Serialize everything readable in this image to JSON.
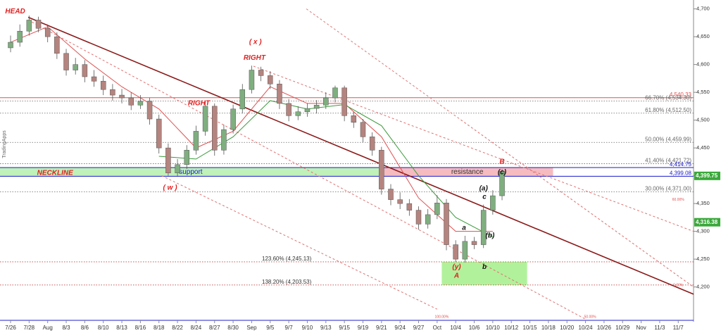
{
  "chart_data": {
    "type": "candlestick",
    "watermark": "TradingApps",
    "xlim": [
      -1.14,
      73.65
    ],
    "ylim": [
      4140,
      4716
    ],
    "xticks": [
      {
        "value": 0,
        "label": "7/26"
      },
      {
        "value": 2,
        "label": "7/28"
      },
      {
        "value": 4,
        "label": "Aug"
      },
      {
        "value": 6,
        "label": "8/3"
      },
      {
        "value": 8,
        "label": "8/6"
      },
      {
        "value": 10,
        "label": "8/10"
      },
      {
        "value": 12,
        "label": "8/13"
      },
      {
        "value": 14,
        "label": "8/16"
      },
      {
        "value": 16,
        "label": "8/18"
      },
      {
        "value": 18,
        "label": "8/22"
      },
      {
        "value": 20,
        "label": "8/24"
      },
      {
        "value": 22,
        "label": "8/27"
      },
      {
        "value": 24,
        "label": "8/30"
      },
      {
        "value": 26,
        "label": "Sep"
      },
      {
        "value": 28,
        "label": "9/5"
      },
      {
        "value": 30,
        "label": "9/7"
      },
      {
        "value": 32,
        "label": "9/10"
      },
      {
        "value": 34,
        "label": "9/13"
      },
      {
        "value": 36,
        "label": "9/15"
      },
      {
        "value": 38,
        "label": "9/19"
      },
      {
        "value": 40,
        "label": "9/21"
      },
      {
        "value": 42,
        "label": "9/24"
      },
      {
        "value": 44,
        "label": "9/27"
      },
      {
        "value": 46,
        "label": "Oct"
      },
      {
        "value": 48,
        "label": "10/4"
      },
      {
        "value": 50,
        "label": "10/6"
      },
      {
        "value": 52,
        "label": "10/10"
      },
      {
        "value": 54,
        "label": "10/12"
      },
      {
        "value": 56,
        "label": "10/15"
      },
      {
        "value": 58,
        "label": "10/18"
      },
      {
        "value": 60,
        "label": "10/20"
      },
      {
        "value": 62,
        "label": "10/24"
      },
      {
        "value": 64,
        "label": "10/26"
      },
      {
        "value": 66,
        "label": "10/29"
      },
      {
        "value": 68,
        "label": "Nov"
      },
      {
        "value": 70,
        "label": "11/3"
      },
      {
        "value": 72,
        "label": "11/7"
      }
    ],
    "yticks": [
      {
        "value": 4700,
        "label": "4,700"
      },
      {
        "value": 4650,
        "label": "4,650"
      },
      {
        "value": 4600,
        "label": "4,600"
      },
      {
        "value": 4550,
        "label": "4,550"
      },
      {
        "value": 4500,
        "label": "4,500"
      },
      {
        "value": 4450,
        "label": "4,450"
      },
      {
        "value": 4400,
        "label": "4,400"
      },
      {
        "value": 4350,
        "label": "4,350"
      },
      {
        "value": 4300,
        "label": "4,300"
      },
      {
        "value": 4250,
        "label": "4,250"
      },
      {
        "value": 4200,
        "label": "4,200"
      }
    ],
    "up_color": "#7fae7f",
    "down_color": "#b5847f",
    "x": [
      0,
      1,
      2,
      3,
      4,
      5,
      6,
      7,
      8,
      9,
      10,
      11,
      12,
      13,
      14,
      15,
      16,
      17,
      18,
      19,
      20,
      21,
      22,
      23,
      24,
      25,
      26,
      27,
      28,
      29,
      30,
      31,
      32,
      33,
      34,
      35,
      36,
      37,
      38,
      39,
      40,
      41,
      42,
      43,
      44,
      45,
      46,
      47,
      48,
      49,
      50,
      51,
      52,
      53
    ],
    "open": [
      4630,
      4640,
      4660,
      4680,
      4665,
      4650,
      4620,
      4590,
      4600,
      4578,
      4570,
      4555,
      4545,
      4540,
      4527,
      4534,
      4502,
      4450,
      4405,
      4420,
      4446,
      4480,
      4525,
      4446,
      4483,
      4520,
      4555,
      4590,
      4580,
      4565,
      4530,
      4508,
      4515,
      4521,
      4527,
      4540,
      4558,
      4508,
      4496,
      4470,
      4446,
      4376,
      4357,
      4350,
      4338,
      4313,
      4330,
      4351,
      4276,
      4250,
      4282,
      4276,
      4338,
      4364
    ],
    "high": [
      4652,
      4672,
      4688,
      4686,
      4672,
      4658,
      4628,
      4612,
      4608,
      4590,
      4580,
      4565,
      4556,
      4550,
      4545,
      4540,
      4510,
      4458,
      4430,
      4455,
      4490,
      4535,
      4530,
      4492,
      4528,
      4565,
      4598,
      4596,
      4588,
      4572,
      4538,
      4525,
      4530,
      4536,
      4550,
      4562,
      4562,
      4515,
      4502,
      4478,
      4452,
      4385,
      4370,
      4358,
      4345,
      4340,
      4365,
      4358,
      4284,
      4292,
      4290,
      4348,
      4374,
      4412
    ],
    "low": [
      4622,
      4632,
      4652,
      4658,
      4640,
      4610,
      4580,
      4582,
      4568,
      4560,
      4545,
      4535,
      4530,
      4518,
      4520,
      4492,
      4440,
      4400,
      4398,
      4412,
      4438,
      4472,
      4436,
      4438,
      4476,
      4512,
      4548,
      4570,
      4556,
      4520,
      4498,
      4500,
      4506,
      4512,
      4520,
      4532,
      4498,
      4486,
      4460,
      4436,
      4366,
      4347,
      4340,
      4328,
      4303,
      4305,
      4322,
      4266,
      4245,
      4244,
      4268,
      4270,
      4330,
      4356
    ],
    "close": [
      4640,
      4660,
      4680,
      4665,
      4650,
      4620,
      4590,
      4600,
      4578,
      4570,
      4555,
      4545,
      4540,
      4527,
      4534,
      4502,
      4450,
      4405,
      4420,
      4446,
      4480,
      4525,
      4446,
      4483,
      4520,
      4555,
      4590,
      4580,
      4565,
      4530,
      4508,
      4515,
      4521,
      4527,
      4540,
      4558,
      4508,
      4496,
      4470,
      4446,
      4376,
      4357,
      4350,
      4338,
      4313,
      4330,
      4351,
      4276,
      4250,
      4282,
      4276,
      4338,
      4364,
      4408
    ],
    "lines": [
      {
        "color": "#e05050",
        "x": [
          0,
          4,
          8,
          12,
          16,
          20,
          24,
          28,
          32,
          36,
          40,
          44,
          48,
          52
        ],
        "values": [
          4640,
          4668,
          4610,
          4560,
          4520,
          4450,
          4480,
          4560,
          4530,
          4530,
          4470,
          4360,
          4300,
          4300
        ]
      },
      {
        "color": "#3a9a3a",
        "x": [
          16,
          20,
          24,
          28,
          32,
          36,
          40,
          44,
          48,
          52
        ],
        "values": [
          4435,
          4430,
          4470,
          4535,
          4520,
          4528,
          4490,
          4400,
          4325,
          4290
        ]
      }
    ],
    "trendlines": [
      {
        "x1": 1.9,
        "y1": 4685,
        "x2": 73.65,
        "y2": 4187,
        "color": "#8b1a1a",
        "dashed": false
      },
      {
        "x1": 31.9,
        "y1": 4700,
        "x2": 73.65,
        "y2": 4200,
        "color": "#e07070",
        "dashed": true
      },
      {
        "x1": 1.9,
        "y1": 4680,
        "x2": 61.9,
        "y2": 4143,
        "color": "#e07070",
        "dashed": true
      },
      {
        "x1": 26.2,
        "y1": 4597,
        "x2": 73.65,
        "y2": 4300,
        "color": "#e07070",
        "dashed": true
      },
      {
        "x1": 16.3,
        "y1": 4400,
        "x2": 46,
        "y2": 4160,
        "color": "#e07070",
        "dashed": true
      }
    ],
    "zones": [
      {
        "x0": -1.14,
        "x1": 40,
        "y0": 4399.08,
        "y1": 4414.75,
        "color": "#b8f0b0",
        "label": "support",
        "label_color": "#1a1acc"
      },
      {
        "x0": 40,
        "x1": 58.5,
        "y0": 4399.08,
        "y1": 4414.75,
        "color": "#f4b4b8",
        "label": "resistance",
        "label_color": "#333333"
      },
      {
        "x0": 46.5,
        "x1": 55.7,
        "y0": 4203.53,
        "y1": 4245.13,
        "color": "#a8f090"
      }
    ],
    "levels": [
      {
        "value": 4540.33,
        "color": "#e05050",
        "dashed": false,
        "label": "4,540.33"
      },
      {
        "value": 4534.3,
        "color": "#666666",
        "dashed": true,
        "label": "66.70% (4,534.30)"
      },
      {
        "value": 4512.5,
        "color": "#666666",
        "dashed": true,
        "label": "61.80% (4,512.50)"
      },
      {
        "value": 4459.99,
        "color": "#666666",
        "dashed": true,
        "label": "50.00% (4,459.99)"
      },
      {
        "value": 4421.72,
        "color": "#666666",
        "dashed": true,
        "label": "41.40% (4,421.72)"
      },
      {
        "value": 4414.75,
        "color": "#1a1acc",
        "dashed": false,
        "label": "4,414.75"
      },
      {
        "value": 4399.08,
        "color": "#1a1acc",
        "dashed": false,
        "label": "4,399.08"
      },
      {
        "value": 4371,
        "color": "#666666",
        "dashed": true,
        "label": "30.00% (4,371.00)"
      },
      {
        "value": 4245.13,
        "color": "#c04040",
        "dashed": true,
        "label": "123.60% (4,245.13)",
        "left": true
      },
      {
        "value": 4203.53,
        "color": "#c04040",
        "dashed": true,
        "label": "138.20% (4,203.53)",
        "left": true
      }
    ],
    "price_tags": [
      {
        "value": 4399.75,
        "label": "4,399.75"
      },
      {
        "value": 4316.38,
        "label": "4,316.38"
      }
    ],
    "annotations": [
      {
        "text": "HEAD",
        "x": 0.5,
        "y": 4695,
        "color": "#e02020"
      },
      {
        "text": "RIGHT",
        "x": 20.3,
        "y": 4530,
        "color": "#e02020"
      },
      {
        "text": "RIGHT",
        "x": 26.3,
        "y": 4612,
        "color": "#e02020"
      },
      {
        "text": "( x )",
        "x": 26.4,
        "y": 4640,
        "color": "#e02020"
      },
      {
        "text": "( w )",
        "x": 17.2,
        "y": 4378,
        "color": "#e02020"
      },
      {
        "text": "NECKLINE",
        "x": 4.8,
        "y": 4405,
        "color": "#e02020"
      },
      {
        "text": "B",
        "x": 53,
        "y": 4425,
        "color": "#e02020"
      },
      {
        "text": "(c)",
        "x": 53,
        "y": 4406,
        "color": "#111111"
      },
      {
        "text": "(a)",
        "x": 51,
        "y": 4377,
        "color": "#111111"
      },
      {
        "text": "c",
        "x": 51.1,
        "y": 4362,
        "color": "#111111"
      },
      {
        "text": "a",
        "x": 48.9,
        "y": 4306,
        "color": "#111111"
      },
      {
        "text": "(b)",
        "x": 51.7,
        "y": 4292,
        "color": "#111111"
      },
      {
        "text": "(y)",
        "x": 48.1,
        "y": 4236,
        "color": "#e02020"
      },
      {
        "text": "A",
        "x": 48.1,
        "y": 4220,
        "color": "#e02020"
      },
      {
        "text": "b",
        "x": 51.1,
        "y": 4236,
        "color": "#111111"
      },
      {
        "text": "60.00%",
        "x": 72,
        "y": 4357,
        "color": "#e05050"
      },
      {
        "text": "0.00%",
        "x": 72,
        "y": 4203,
        "color": "#e05050"
      },
      {
        "text": "100.00%",
        "x": 46.5,
        "y": 4146,
        "color": "#e05050"
      },
      {
        "text": "50.00%",
        "x": 62.5,
        "y": 4146,
        "color": "#e05050"
      }
    ]
  }
}
